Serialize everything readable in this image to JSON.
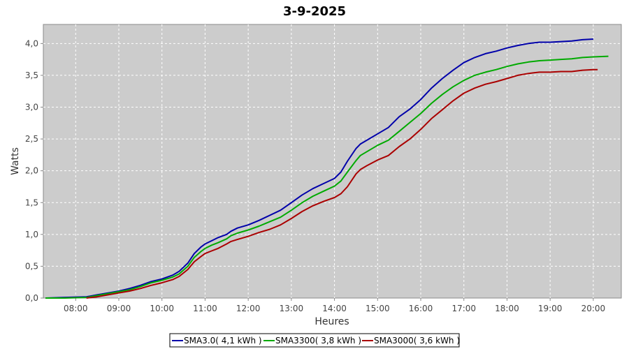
{
  "chart_data": {
    "type": "line",
    "title": "3-9-2025",
    "xlabel": "Heures",
    "ylabel": "Watts",
    "xlim": [
      7.25,
      20.65
    ],
    "ylim": [
      0,
      4.3
    ],
    "x_ticks": [
      "08:00",
      "09:00",
      "10:00",
      "11:00",
      "12:00",
      "13:00",
      "14:00",
      "15:00",
      "16:00",
      "17:00",
      "18:00",
      "19:00",
      "20:00"
    ],
    "y_ticks": [
      "0,0",
      "0,5",
      "1,0",
      "1,5",
      "2,0",
      "2,5",
      "3,0",
      "3,5",
      "4,0"
    ],
    "grid": true,
    "legend_position": "bottom",
    "series": [
      {
        "name": "SMA3.0( 4,1 kWh )",
        "color": "#0000aa",
        "x": [
          7.3,
          7.75,
          8.25,
          8.5,
          8.75,
          9.0,
          9.25,
          9.5,
          9.75,
          10.0,
          10.25,
          10.4,
          10.6,
          10.75,
          10.9,
          11.0,
          11.15,
          11.3,
          11.5,
          11.6,
          11.75,
          12.0,
          12.25,
          12.5,
          12.75,
          13.0,
          13.25,
          13.5,
          13.75,
          14.0,
          14.15,
          14.3,
          14.5,
          14.6,
          14.75,
          15.0,
          15.25,
          15.5,
          15.75,
          16.0,
          16.25,
          16.5,
          16.75,
          17.0,
          17.25,
          17.5,
          17.75,
          18.0,
          18.25,
          18.5,
          18.75,
          19.0,
          19.25,
          19.5,
          19.75,
          20.0
        ],
        "values": [
          0.0,
          0.01,
          0.02,
          0.05,
          0.08,
          0.11,
          0.15,
          0.2,
          0.26,
          0.3,
          0.36,
          0.42,
          0.55,
          0.7,
          0.8,
          0.85,
          0.9,
          0.95,
          1.0,
          1.05,
          1.1,
          1.15,
          1.22,
          1.3,
          1.38,
          1.5,
          1.62,
          1.72,
          1.8,
          1.88,
          1.98,
          2.15,
          2.35,
          2.42,
          2.48,
          2.58,
          2.68,
          2.85,
          2.97,
          3.12,
          3.3,
          3.45,
          3.58,
          3.7,
          3.78,
          3.84,
          3.88,
          3.93,
          3.97,
          4.0,
          4.02,
          4.02,
          4.03,
          4.04,
          4.06,
          4.07
        ]
      },
      {
        "name": "SMA3300( 3,8 kWh )",
        "color": "#00aa00",
        "x": [
          7.3,
          7.75,
          8.25,
          8.5,
          8.75,
          9.0,
          9.25,
          9.5,
          9.75,
          10.0,
          10.25,
          10.4,
          10.6,
          10.75,
          10.9,
          11.0,
          11.15,
          11.3,
          11.5,
          11.6,
          11.75,
          12.0,
          12.25,
          12.5,
          12.75,
          13.0,
          13.25,
          13.5,
          13.75,
          14.0,
          14.15,
          14.3,
          14.5,
          14.6,
          14.75,
          15.0,
          15.25,
          15.5,
          15.75,
          16.0,
          16.25,
          16.5,
          16.75,
          17.0,
          17.25,
          17.5,
          17.75,
          18.0,
          18.25,
          18.5,
          18.75,
          19.0,
          19.25,
          19.5,
          19.75,
          20.0,
          20.35
        ],
        "values": [
          0.0,
          0.0,
          0.01,
          0.04,
          0.07,
          0.1,
          0.13,
          0.18,
          0.24,
          0.28,
          0.33,
          0.38,
          0.5,
          0.64,
          0.73,
          0.78,
          0.83,
          0.87,
          0.93,
          0.98,
          1.02,
          1.07,
          1.13,
          1.2,
          1.27,
          1.38,
          1.5,
          1.6,
          1.68,
          1.76,
          1.84,
          1.98,
          2.16,
          2.24,
          2.3,
          2.4,
          2.48,
          2.62,
          2.76,
          2.9,
          3.06,
          3.2,
          3.32,
          3.42,
          3.5,
          3.55,
          3.59,
          3.64,
          3.68,
          3.71,
          3.73,
          3.74,
          3.75,
          3.76,
          3.78,
          3.79,
          3.8
        ]
      },
      {
        "name": "SMA3000( 3,6 kWh )",
        "color": "#aa0000",
        "x": [
          8.25,
          8.5,
          8.75,
          9.0,
          9.25,
          9.5,
          9.75,
          10.0,
          10.25,
          10.4,
          10.6,
          10.75,
          10.9,
          11.0,
          11.15,
          11.3,
          11.5,
          11.6,
          11.75,
          12.0,
          12.25,
          12.5,
          12.75,
          13.0,
          13.25,
          13.5,
          13.75,
          14.0,
          14.15,
          14.3,
          14.5,
          14.6,
          14.75,
          15.0,
          15.25,
          15.5,
          15.75,
          16.0,
          16.25,
          16.5,
          16.75,
          17.0,
          17.25,
          17.5,
          17.75,
          18.0,
          18.25,
          18.5,
          18.75,
          19.0,
          19.25,
          19.5,
          19.75,
          20.0,
          20.1
        ],
        "values": [
          0.0,
          0.02,
          0.05,
          0.08,
          0.11,
          0.15,
          0.2,
          0.24,
          0.29,
          0.34,
          0.45,
          0.57,
          0.65,
          0.7,
          0.74,
          0.78,
          0.85,
          0.89,
          0.92,
          0.97,
          1.03,
          1.08,
          1.15,
          1.25,
          1.36,
          1.45,
          1.52,
          1.58,
          1.64,
          1.75,
          1.95,
          2.02,
          2.08,
          2.17,
          2.24,
          2.38,
          2.5,
          2.65,
          2.82,
          2.96,
          3.1,
          3.22,
          3.3,
          3.36,
          3.4,
          3.45,
          3.5,
          3.53,
          3.55,
          3.55,
          3.56,
          3.56,
          3.58,
          3.59,
          3.59
        ]
      }
    ]
  }
}
